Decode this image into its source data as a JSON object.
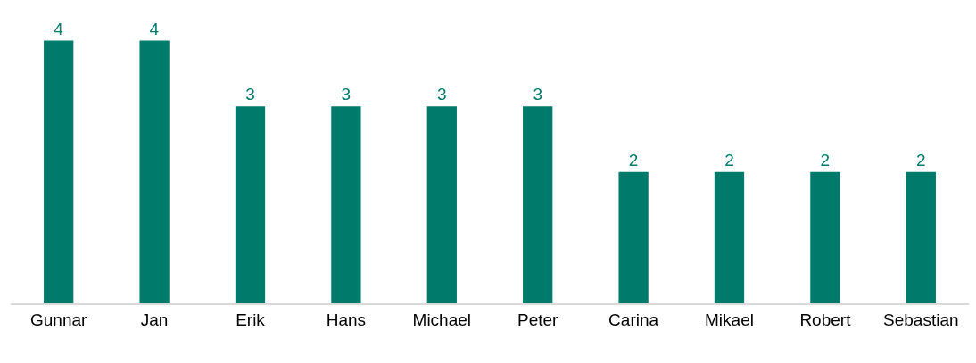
{
  "chart_data": {
    "type": "bar",
    "categories": [
      "Gunnar",
      "Jan",
      "Erik",
      "Hans",
      "Michael",
      "Peter",
      "Carina",
      "Mikael",
      "Robert",
      "Sebastian"
    ],
    "values": [
      4,
      4,
      3,
      3,
      3,
      3,
      2,
      2,
      2,
      2
    ],
    "color": "#007a6a",
    "data_labels": true,
    "grid": false,
    "legend": false,
    "tick_labels": "x"
  }
}
